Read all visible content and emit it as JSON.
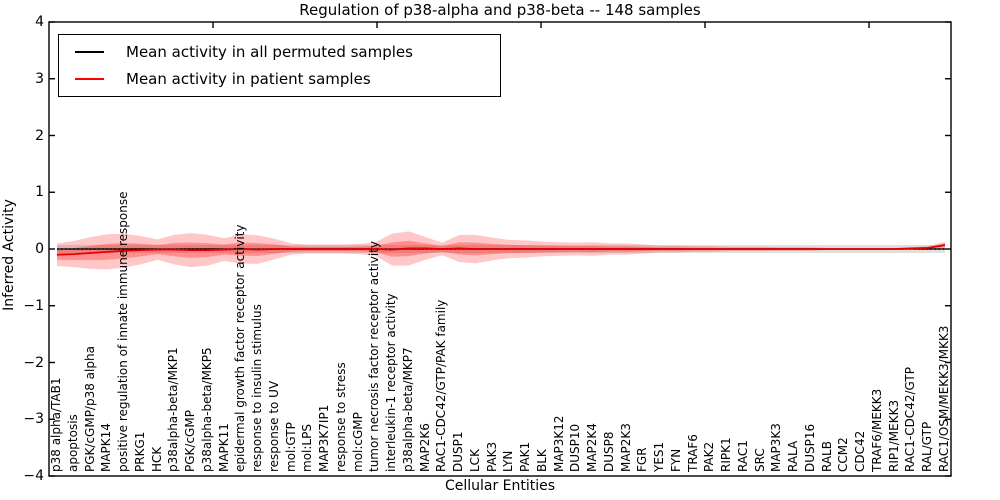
{
  "chart_data": {
    "type": "line",
    "title": "Regulation of p38-alpha and p38-beta -- 148 samples",
    "xlabel": "Cellular Entities",
    "ylabel": "Inferred Activity",
    "ylim": [
      -4,
      4
    ],
    "ytick_labels": [
      "4",
      "3",
      "2",
      "1",
      "0",
      "−1",
      "−2",
      "−3",
      "−4"
    ],
    "grid": false,
    "legend_position": "upper left",
    "legend": [
      {
        "label": "Mean activity in all permuted samples",
        "color": "#000000"
      },
      {
        "label": "Mean activity in patient samples",
        "color": "#ff0000"
      }
    ],
    "categories": [
      "p38 alpha/TAB1",
      "apoptosis",
      "PGK/cGMP/p38 alpha",
      "MAPK14",
      "positive regulation of innate immune response",
      "PRKG1",
      "HCK",
      "p38alpha-beta/MKP1",
      "PGK/cGMP",
      "p38alpha-beta/MKP5",
      "MAPK11",
      "epidermal growth factor receptor activity",
      "response to insulin stimulus",
      "response to UV",
      "mol:GTP",
      "mol:LPS",
      "MAP3K7IP1",
      "response to stress",
      "mol:cGMP",
      "tumor necrosis factor receptor activity",
      "interleukin-1 receptor activity",
      "p38alpha-beta/MKP7",
      "MAP2K6",
      "RAC1-CDC42/GTP/PAK family",
      "DUSP1",
      "LCK",
      "PAK3",
      "LYN",
      "PAK1",
      "BLK",
      "MAP3K12",
      "DUSP10",
      "MAP2K4",
      "DUSP8",
      "MAP2K3",
      "FGR",
      "YES1",
      "FYN",
      "TRAF6",
      "PAK2",
      "RIPK1",
      "RAC1",
      "SRC",
      "MAP3K3",
      "RALA",
      "DUSP16",
      "RALB",
      "CCM2",
      "CDC42",
      "TRAF6/MEKK3",
      "RIP1/MEKK3",
      "RAC1-CDC42/GTP",
      "RAL/GTP",
      "RAC1/OSM/MEKK3/MKK3"
    ],
    "series": [
      {
        "name": "Mean activity in all permuted samples",
        "color": "#000000",
        "style": "solid",
        "values": [
          0,
          0,
          0,
          0,
          0,
          0,
          0,
          0,
          0,
          0,
          0,
          0,
          0,
          0,
          0,
          0,
          0,
          0,
          0,
          0,
          0,
          0,
          0,
          0,
          0,
          0,
          0,
          0,
          0,
          0,
          0,
          0,
          0,
          0,
          0,
          0,
          0,
          0,
          0,
          0,
          0,
          0,
          0,
          0,
          0,
          0,
          0,
          0,
          0,
          0,
          0,
          0,
          0,
          0
        ]
      },
      {
        "name": "Mean activity in patient samples",
        "color": "#e60000",
        "style": "solid",
        "values": [
          -0.1,
          -0.09,
          -0.07,
          -0.05,
          -0.03,
          -0.02,
          -0.01,
          -0.01,
          -0.02,
          -0.02,
          -0.01,
          0,
          -0.01,
          0,
          0,
          0,
          0,
          0,
          0,
          0,
          -0.01,
          0.01,
          0.01,
          0,
          0.01,
          0,
          0,
          0,
          0,
          0,
          0,
          0,
          0,
          0,
          0,
          0,
          0,
          0,
          0,
          0,
          0,
          0,
          0,
          0,
          0,
          0,
          0,
          0,
          0,
          0,
          0,
          0.01,
          0.02,
          0.07
        ]
      }
    ],
    "bands": {
      "permuted_half_width": 0.07,
      "patient_half_widths": [
        0.2,
        0.23,
        0.28,
        0.31,
        0.3,
        0.25,
        0.18,
        0.26,
        0.3,
        0.27,
        0.2,
        0.26,
        0.25,
        0.18,
        0.1,
        0.08,
        0.08,
        0.08,
        0.09,
        0.12,
        0.28,
        0.3,
        0.2,
        0.11,
        0.24,
        0.25,
        0.2,
        0.16,
        0.15,
        0.13,
        0.12,
        0.11,
        0.12,
        0.1,
        0.1,
        0.08,
        0.06,
        0.06,
        0.05,
        0.05,
        0.04,
        0.04,
        0.04,
        0.03,
        0.03,
        0.03,
        0.02,
        0.02,
        0.02,
        0.02,
        0.02,
        0.02,
        0.03,
        0.06
      ]
    },
    "zero_line": {
      "style": "dotted",
      "color": "#000000",
      "y": 0
    }
  }
}
